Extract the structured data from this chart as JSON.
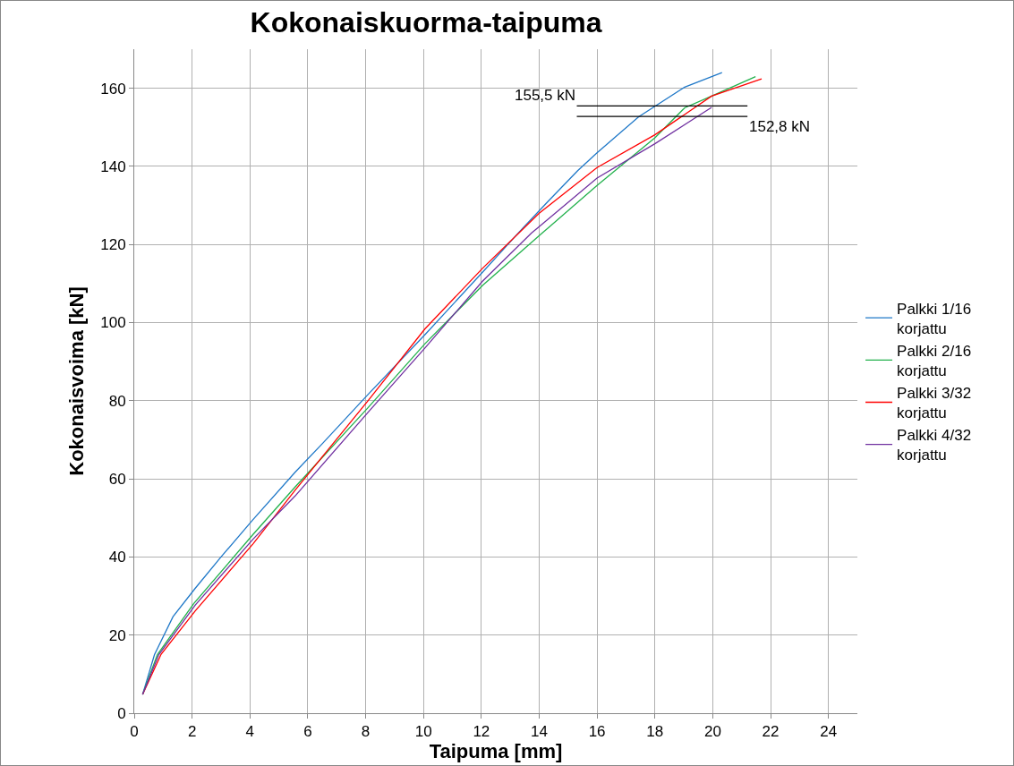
{
  "chart_data": {
    "type": "line",
    "title": "Kokonaiskuorma-taipuma",
    "xlabel": "Taipuma [mm]",
    "ylabel": "Kokonaisvoima [kN]",
    "xlim": [
      0,
      25
    ],
    "xticks": [
      0,
      2,
      4,
      6,
      8,
      10,
      12,
      14,
      16,
      18,
      20,
      22,
      24
    ],
    "ylim": [
      0,
      170
    ],
    "yticks": [
      0,
      20,
      40,
      60,
      80,
      100,
      120,
      140,
      160
    ],
    "grid": true,
    "legend": "right",
    "marker": "none",
    "line_style": "solid",
    "series": [
      {
        "name": "Palkki 1/16 korjattu",
        "color": "#1f78c8",
        "x": [
          0.29,
          0.7,
          1.34,
          2.1,
          3,
          4.1,
          5.56,
          6.5,
          8.08,
          10.05,
          12.04,
          13.27,
          14.3,
          15.33,
          16,
          17.44,
          19.03,
          20.32
        ],
        "values": [
          4.8,
          15,
          24.7,
          31.9,
          40,
          49.5,
          61.7,
          69,
          81.6,
          96.9,
          112.9,
          122.9,
          131,
          138.9,
          143.5,
          152.7,
          160.3,
          164.0
        ]
      },
      {
        "name": "Palkki 2/16 korjattu",
        "color": "#22b14c",
        "x": [
          0.29,
          0.8,
          2.06,
          4.1,
          5.56,
          8.08,
          10.05,
          12.04,
          14.1,
          16.0,
          18.0,
          19.03,
          19.96,
          21.48
        ],
        "values": [
          4.8,
          15,
          28.1,
          45.7,
          57.9,
          78.2,
          94.6,
          109.5,
          122.9,
          135.1,
          147.3,
          155.0,
          158.0,
          163.0
        ]
      },
      {
        "name": "Palkki 3/32 korjattu",
        "color": "#ff0000",
        "x": [
          0.29,
          0.93,
          2.11,
          4.11,
          5.56,
          8.08,
          10.05,
          12.04,
          14,
          16.0,
          18.0,
          19.96,
          21.69
        ],
        "values": [
          4.8,
          15.1,
          26.2,
          43.4,
          57.1,
          80.0,
          98.4,
          113.9,
          128,
          139.7,
          148.1,
          158.0,
          162.4
        ]
      },
      {
        "name": "Palkki 4/32 korjattu",
        "color": "#7030a0",
        "x": [
          0.29,
          0.85,
          2.11,
          4.11,
          5.56,
          8.08,
          10.05,
          12.04,
          13.73,
          16.0,
          18.0,
          19.96
        ],
        "values": [
          4.8,
          15,
          27.7,
          44.6,
          55.6,
          77.0,
          93.5,
          110.6,
          122.9,
          137.0,
          145.8,
          155.1
        ]
      },
      {
        "color": "#000000",
        "x": [
          15.3,
          21.2
        ],
        "values": [
          155.5,
          155.5
        ]
      },
      {
        "color": "#000000",
        "x": [
          15.3,
          21.2
        ],
        "values": [
          152.8,
          152.8
        ]
      }
    ],
    "annotations": [
      {
        "text": "155,5 kN",
        "x": 15.3,
        "y": 155.5
      },
      {
        "text": "152,8 kN",
        "x": 21.2,
        "y": 152.8
      }
    ]
  }
}
